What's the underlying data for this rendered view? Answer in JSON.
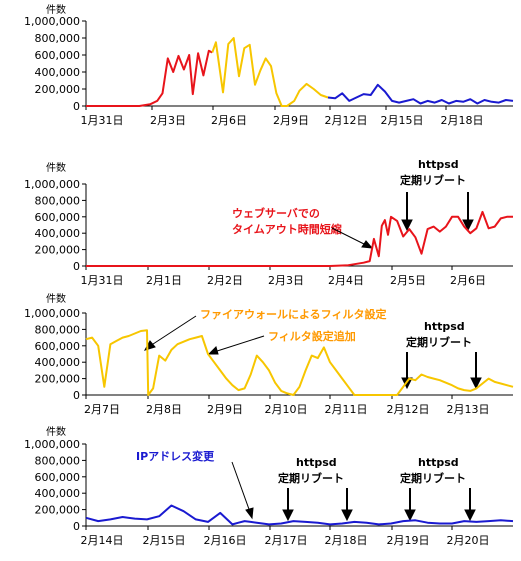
{
  "colors": {
    "red": "#e8141b",
    "yellow": "#f7c600",
    "blue": "#1a1ad0",
    "orange": "#ff9900",
    "axis": "#000000"
  },
  "chart_data": [
    {
      "type": "line",
      "unit_label": "件数",
      "ylim": [
        0,
        1000000
      ],
      "y_ticks": [
        "0",
        "200,000",
        "400,000",
        "600,000",
        "800,000",
        "1,000,000"
      ],
      "x_ticks": [
        "1月31日",
        "2月3日",
        "2月6日",
        "2月9日",
        "2月12日",
        "2月15日",
        "2月18日"
      ],
      "x_range": [
        0,
        24
      ],
      "series": [
        {
          "color": "red",
          "x": [
            0,
            1,
            2,
            3,
            3.6,
            4.0,
            4.3,
            4.6,
            4.9,
            5.2,
            5.5,
            5.8,
            6.0,
            6.3,
            6.6,
            6.9,
            7.1
          ],
          "y": [
            0,
            0,
            0,
            0,
            20000,
            60000,
            150000,
            560000,
            400000,
            590000,
            430000,
            600000,
            140000,
            620000,
            360000,
            650000,
            630000
          ]
        },
        {
          "color": "yellow",
          "x": [
            7.1,
            7.3,
            7.7,
            8.0,
            8.3,
            8.6,
            8.9,
            9.2,
            9.5,
            9.8,
            10.1,
            10.4,
            10.7,
            11.0,
            11.3,
            11.7,
            12.0,
            12.4,
            12.8,
            13.2,
            13.6
          ],
          "y": [
            630000,
            750000,
            160000,
            730000,
            800000,
            350000,
            680000,
            720000,
            250000,
            420000,
            560000,
            470000,
            150000,
            0,
            0,
            60000,
            180000,
            260000,
            200000,
            130000,
            100000
          ]
        },
        {
          "color": "blue",
          "x": [
            13.6,
            14.0,
            14.4,
            14.8,
            15.2,
            15.6,
            16.0,
            16.4,
            16.8,
            17.2,
            17.6,
            18.0,
            18.4,
            18.8,
            19.2,
            19.6,
            20.0,
            20.4,
            20.8,
            21.2,
            21.6,
            22.0,
            22.4,
            22.8,
            23.2,
            23.6,
            24.0
          ],
          "y": [
            100000,
            90000,
            150000,
            60000,
            100000,
            140000,
            130000,
            250000,
            170000,
            60000,
            40000,
            60000,
            80000,
            30000,
            60000,
            40000,
            70000,
            30000,
            60000,
            50000,
            80000,
            30000,
            70000,
            50000,
            40000,
            70000,
            60000
          ]
        }
      ]
    },
    {
      "type": "line",
      "unit_label": "件数",
      "ylim": [
        0,
        1000000
      ],
      "y_ticks": [
        "0",
        "200,000",
        "400,000",
        "600,000",
        "800,000",
        "1,000,000"
      ],
      "x_ticks": [
        "1月31日",
        "2月1日",
        "2月2日",
        "2月3日",
        "2月4日",
        "2月5日",
        "2月6日"
      ],
      "x_range": [
        0,
        7
      ],
      "series": [
        {
          "color": "red",
          "x": [
            0,
            1,
            2,
            3,
            3.5,
            4.0,
            4.3,
            4.55,
            4.65,
            4.72,
            4.8,
            4.85,
            4.9,
            4.95,
            5.0,
            5.1,
            5.2,
            5.3,
            5.4,
            5.5,
            5.6,
            5.7,
            5.8,
            5.9,
            6.0,
            6.1,
            6.2,
            6.3,
            6.4,
            6.5,
            6.6,
            6.7,
            6.8,
            6.9,
            7.0
          ],
          "y": [
            0,
            0,
            0,
            0,
            0,
            0,
            10000,
            40000,
            60000,
            330000,
            120000,
            490000,
            560000,
            380000,
            600000,
            550000,
            360000,
            450000,
            350000,
            150000,
            450000,
            480000,
            420000,
            480000,
            600000,
            600000,
            480000,
            400000,
            460000,
            660000,
            460000,
            480000,
            580000,
            600000,
            600000
          ]
        }
      ],
      "annotations": [
        {
          "text": "ウェブサーバでの",
          "color": "red"
        },
        {
          "text": "タイムアウト時間短縮",
          "color": "red"
        },
        {
          "text": "httpsd",
          "color": "black"
        },
        {
          "text": "定期リブート",
          "color": "black"
        }
      ]
    },
    {
      "type": "line",
      "unit_label": "件数",
      "ylim": [
        0,
        1000000
      ],
      "y_ticks": [
        "0",
        "200,000",
        "400,000",
        "600,000",
        "800,000",
        "1,000,000"
      ],
      "x_ticks": [
        "2月7日",
        "2月8日",
        "2月9日",
        "2月10日",
        "2月11日",
        "2月12日",
        "2月13日"
      ],
      "x_range": [
        0,
        7
      ],
      "series": [
        {
          "color": "yellow",
          "x": [
            0,
            0.1,
            0.2,
            0.3,
            0.4,
            0.5,
            0.6,
            0.7,
            0.8,
            0.9,
            1.0,
            1.02,
            1.1,
            1.2,
            1.3,
            1.4,
            1.5,
            1.6,
            1.7,
            1.8,
            1.9,
            2.0,
            2.1,
            2.2,
            2.3,
            2.4,
            2.5,
            2.6,
            2.7,
            2.8,
            2.9,
            3.0,
            3.1,
            3.2,
            3.3,
            3.4,
            3.5,
            3.6,
            3.7,
            3.8,
            3.9,
            4.0,
            4.1,
            4.2,
            4.3,
            4.4,
            4.5,
            4.6,
            4.7,
            4.8,
            4.9,
            5.0,
            5.1,
            5.2,
            5.3,
            5.4,
            5.5,
            5.6,
            5.7,
            5.8,
            5.9,
            6.0,
            6.1,
            6.2,
            6.3,
            6.4,
            6.5,
            6.6,
            6.7,
            6.8,
            6.9,
            7.0
          ],
          "y": [
            680000,
            700000,
            600000,
            100000,
            620000,
            660000,
            700000,
            720000,
            750000,
            780000,
            790000,
            0,
            80000,
            480000,
            420000,
            550000,
            620000,
            650000,
            680000,
            700000,
            720000,
            500000,
            400000,
            300000,
            200000,
            120000,
            60000,
            80000,
            250000,
            480000,
            400000,
            300000,
            150000,
            50000,
            20000,
            0,
            100000,
            300000,
            480000,
            450000,
            580000,
            400000,
            300000,
            200000,
            100000,
            0,
            0,
            0,
            0,
            0,
            0,
            0,
            0,
            100000,
            200000,
            180000,
            250000,
            220000,
            200000,
            180000,
            150000,
            120000,
            80000,
            60000,
            50000,
            80000,
            140000,
            200000,
            160000,
            140000,
            120000,
            100000
          ]
        }
      ],
      "annotations": [
        {
          "text": "ファイアウォールによるフィルタ設定",
          "color": "orange"
        },
        {
          "text": "フィルタ設定追加",
          "color": "orange"
        },
        {
          "text": "httpsd",
          "color": "black"
        },
        {
          "text": "定期リブート",
          "color": "black"
        }
      ]
    },
    {
      "type": "line",
      "unit_label": "件数",
      "ylim": [
        0,
        1000000
      ],
      "y_ticks": [
        "0",
        "200,000",
        "400,000",
        "600,000",
        "800,000",
        "1,000,000"
      ],
      "x_ticks": [
        "2月14日",
        "2月15日",
        "2月16日",
        "2月17日",
        "2月18日",
        "2月19日",
        "2月20日"
      ],
      "x_range": [
        0,
        7
      ],
      "series": [
        {
          "color": "blue",
          "x": [
            0,
            0.2,
            0.4,
            0.6,
            0.8,
            1.0,
            1.2,
            1.4,
            1.6,
            1.8,
            2.0,
            2.2,
            2.4,
            2.5,
            2.6,
            2.7,
            2.8,
            3.0,
            3.2,
            3.4,
            3.6,
            3.8,
            4.0,
            4.2,
            4.4,
            4.6,
            4.8,
            5.0,
            5.2,
            5.4,
            5.6,
            5.8,
            6.0,
            6.2,
            6.4,
            6.6,
            6.8,
            7.0
          ],
          "y": [
            100000,
            60000,
            80000,
            110000,
            90000,
            80000,
            120000,
            250000,
            180000,
            80000,
            50000,
            160000,
            20000,
            40000,
            60000,
            50000,
            40000,
            20000,
            30000,
            60000,
            50000,
            40000,
            20000,
            30000,
            50000,
            40000,
            20000,
            30000,
            60000,
            70000,
            40000,
            30000,
            30000,
            60000,
            50000,
            60000,
            70000,
            60000
          ]
        }
      ],
      "annotations": [
        {
          "text": "IPアドレス変更",
          "color": "blue"
        },
        {
          "text": "httpsd",
          "color": "black"
        },
        {
          "text": "定期リブート",
          "color": "black"
        },
        {
          "text": "httpsd",
          "color": "black"
        },
        {
          "text": "定期リブート",
          "color": "black"
        }
      ]
    }
  ]
}
